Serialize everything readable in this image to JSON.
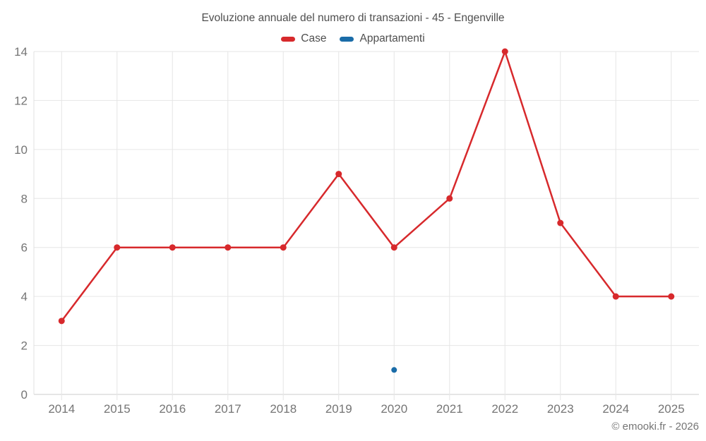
{
  "page": {
    "title": "Evoluzione annuale del numero di transazioni - 45 - Engenville",
    "footer": "© emooki.fr - 2026"
  },
  "legend": {
    "items": [
      {
        "label": "Case",
        "color": "#d7292c"
      },
      {
        "label": "Appartamenti",
        "color": "#1a6ca8"
      }
    ]
  },
  "chart_data": {
    "type": "line",
    "title": "Evoluzione annuale del numero di transazioni - 45 - Engenville",
    "categories": [
      "2014",
      "2015",
      "2016",
      "2017",
      "2018",
      "2019",
      "2020",
      "2021",
      "2022",
      "2023",
      "2024",
      "2025"
    ],
    "series": [
      {
        "name": "Case",
        "color": "#d7292c",
        "line": true,
        "marker_radius": 4.5,
        "values": [
          3,
          6,
          6,
          6,
          6,
          9,
          6,
          8,
          14,
          7,
          4,
          4
        ]
      },
      {
        "name": "Appartamenti",
        "color": "#1a6ca8",
        "line": true,
        "marker_radius": 4,
        "values": [
          null,
          null,
          null,
          null,
          null,
          null,
          1,
          null,
          null,
          null,
          null,
          null
        ]
      }
    ],
    "xlabel": "",
    "ylabel": "",
    "ylim": [
      0,
      14
    ],
    "ytick_step": 2,
    "grid": true,
    "legend_position": "top",
    "grid_color": "#e6e6e6",
    "axis_line_color": "#cccccc",
    "axis_text_color": "#757575"
  }
}
